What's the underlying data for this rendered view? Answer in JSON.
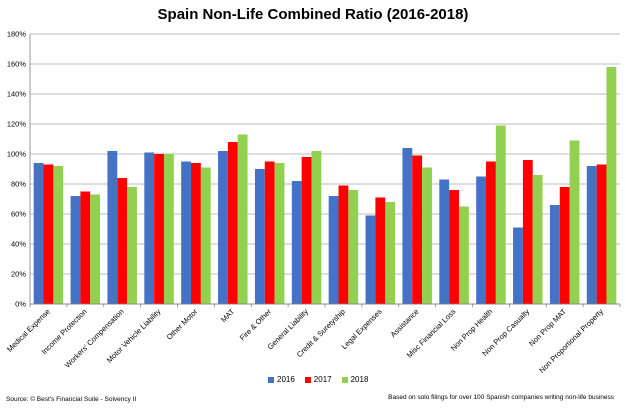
{
  "chart_data": {
    "type": "bar",
    "title": "Spain Non-Life Combined Ratio (2016-2018)",
    "xlabel": "",
    "ylabel": "",
    "ylim": [
      0,
      180
    ],
    "y_tick_labels": [
      "0%",
      "20%",
      "40%",
      "60%",
      "80%",
      "100%",
      "120%",
      "140%",
      "160%",
      "180%"
    ],
    "grid": true,
    "legend_position": "bottom",
    "categories": [
      "Medical Expense",
      "Income Protection",
      "Workers' Compensation",
      "Motor Vehicle Liability",
      "Other Motor",
      "MAT",
      "Fire & Other",
      "General Liability",
      "Credit & Suretyship",
      "Legal Expenses",
      "Assistance",
      "Misc Financial Loss",
      "Non Prop Health",
      "Non Prop Casualty",
      "Non Prop MAT",
      "Non Proportional Property"
    ],
    "series": [
      {
        "name": "2016",
        "color": "#4472c4",
        "values": [
          94,
          72,
          102,
          101,
          95,
          102,
          90,
          82,
          72,
          59,
          104,
          83,
          85,
          51,
          66,
          92
        ]
      },
      {
        "name": "2017",
        "color": "#ff0000",
        "values": [
          93,
          75,
          84,
          100,
          94,
          108,
          95,
          98,
          79,
          71,
          99,
          76,
          95,
          96,
          78,
          93
        ]
      },
      {
        "name": "2018",
        "color": "#92d050",
        "values": [
          92,
          73,
          78,
          100,
          91,
          113,
          94,
          102,
          76,
          68,
          91,
          65,
          119,
          86,
          109,
          158
        ]
      }
    ]
  },
  "footer": {
    "source": "Source: © Best's Financial Suite - Solvency II",
    "note": "Based on solo filings for over 100 Spanish companies writing non-life business"
  }
}
